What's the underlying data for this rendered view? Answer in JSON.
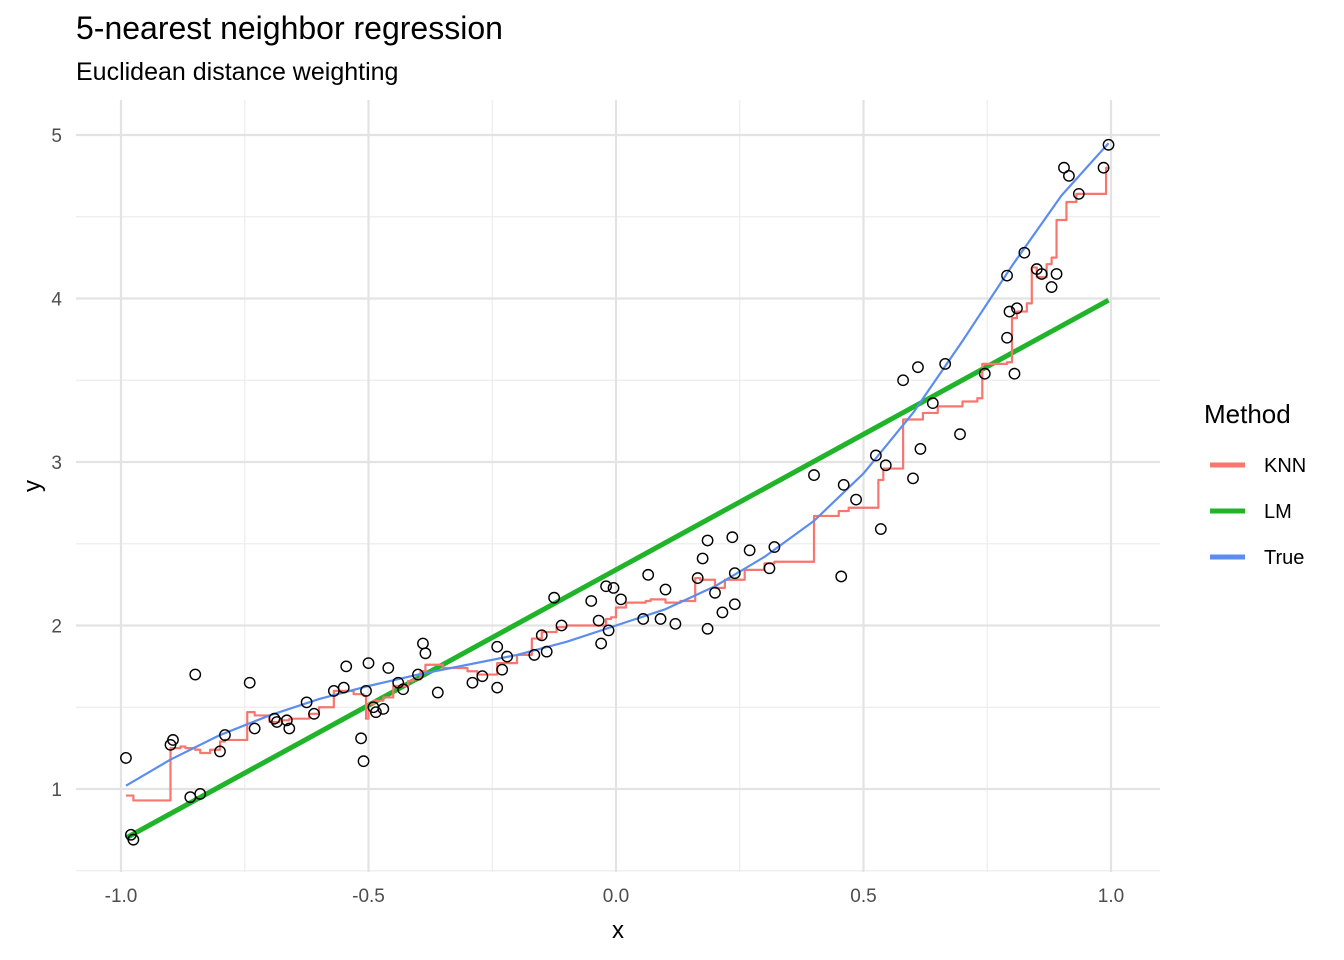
{
  "chart_data": {
    "type": "line",
    "title": "5-nearest neighbor regression",
    "subtitle": "Euclidean distance weighting",
    "xlabel": "x",
    "ylabel": "y",
    "xlim": [
      -1.0,
      1.0
    ],
    "ylim": [
      0.5,
      5.2
    ],
    "x_ticks": [
      -1.0,
      -0.5,
      0.0,
      0.5,
      1.0
    ],
    "x_tick_labels": [
      "-1.0",
      "-0.5",
      "0.0",
      "0.5",
      "1.0"
    ],
    "y_ticks": [
      1,
      2,
      3,
      4,
      5
    ],
    "y_tick_labels": [
      "1",
      "2",
      "3",
      "4",
      "5"
    ],
    "grid": true,
    "legend": {
      "title": "Method",
      "position": "right",
      "entries": [
        {
          "label": "KNN",
          "color": "#F8766D"
        },
        {
          "label": "LM",
          "color": "#1FB429"
        },
        {
          "label": "True",
          "color": "#5B8DF0"
        }
      ]
    },
    "points": [
      [
        -0.99,
        1.19
      ],
      [
        -0.98,
        0.72
      ],
      [
        -0.975,
        0.69
      ],
      [
        -0.9,
        1.27
      ],
      [
        -0.895,
        1.3
      ],
      [
        -0.86,
        0.95
      ],
      [
        -0.85,
        1.7
      ],
      [
        -0.84,
        0.97
      ],
      [
        -0.8,
        1.23
      ],
      [
        -0.79,
        1.33
      ],
      [
        -0.74,
        1.65
      ],
      [
        -0.73,
        1.37
      ],
      [
        -0.69,
        1.43
      ],
      [
        -0.685,
        1.41
      ],
      [
        -0.665,
        1.42
      ],
      [
        -0.66,
        1.37
      ],
      [
        -0.625,
        1.53
      ],
      [
        -0.61,
        1.46
      ],
      [
        -0.57,
        1.6
      ],
      [
        -0.55,
        1.62
      ],
      [
        -0.545,
        1.75
      ],
      [
        -0.515,
        1.31
      ],
      [
        -0.51,
        1.17
      ],
      [
        -0.505,
        1.6
      ],
      [
        -0.5,
        1.77
      ],
      [
        -0.49,
        1.5
      ],
      [
        -0.485,
        1.47
      ],
      [
        -0.47,
        1.49
      ],
      [
        -0.46,
        1.74
      ],
      [
        -0.44,
        1.65
      ],
      [
        -0.43,
        1.61
      ],
      [
        -0.4,
        1.7
      ],
      [
        -0.39,
        1.89
      ],
      [
        -0.385,
        1.83
      ],
      [
        -0.36,
        1.59
      ],
      [
        -0.29,
        1.65
      ],
      [
        -0.27,
        1.69
      ],
      [
        -0.24,
        1.87
      ],
      [
        -0.24,
        1.62
      ],
      [
        -0.23,
        1.73
      ],
      [
        -0.22,
        1.81
      ],
      [
        -0.165,
        1.82
      ],
      [
        -0.15,
        1.94
      ],
      [
        -0.14,
        1.84
      ],
      [
        -0.125,
        2.17
      ],
      [
        -0.11,
        2.0
      ],
      [
        -0.05,
        2.15
      ],
      [
        -0.035,
        2.03
      ],
      [
        -0.03,
        1.89
      ],
      [
        -0.02,
        2.24
      ],
      [
        -0.015,
        1.97
      ],
      [
        -0.005,
        2.23
      ],
      [
        0.01,
        2.16
      ],
      [
        0.055,
        2.04
      ],
      [
        0.065,
        2.31
      ],
      [
        0.09,
        2.04
      ],
      [
        0.1,
        2.22
      ],
      [
        0.12,
        2.01
      ],
      [
        0.165,
        2.29
      ],
      [
        0.175,
        2.41
      ],
      [
        0.185,
        1.98
      ],
      [
        0.185,
        2.52
      ],
      [
        0.2,
        2.2
      ],
      [
        0.215,
        2.08
      ],
      [
        0.235,
        2.54
      ],
      [
        0.24,
        2.32
      ],
      [
        0.24,
        2.13
      ],
      [
        0.27,
        2.46
      ],
      [
        0.31,
        2.35
      ],
      [
        0.32,
        2.48
      ],
      [
        0.4,
        2.92
      ],
      [
        0.455,
        2.3
      ],
      [
        0.46,
        2.86
      ],
      [
        0.485,
        2.77
      ],
      [
        0.525,
        3.04
      ],
      [
        0.535,
        2.59
      ],
      [
        0.545,
        2.98
      ],
      [
        0.58,
        3.5
      ],
      [
        0.6,
        2.9
      ],
      [
        0.61,
        3.58
      ],
      [
        0.615,
        3.08
      ],
      [
        0.64,
        3.36
      ],
      [
        0.665,
        3.6
      ],
      [
        0.695,
        3.17
      ],
      [
        0.745,
        3.54
      ],
      [
        0.79,
        4.14
      ],
      [
        0.79,
        3.76
      ],
      [
        0.795,
        3.92
      ],
      [
        0.805,
        3.54
      ],
      [
        0.81,
        3.94
      ],
      [
        0.825,
        4.28
      ],
      [
        0.85,
        4.18
      ],
      [
        0.86,
        4.15
      ],
      [
        0.88,
        4.07
      ],
      [
        0.89,
        4.15
      ],
      [
        0.905,
        4.8
      ],
      [
        0.915,
        4.75
      ],
      [
        0.935,
        4.64
      ],
      [
        0.985,
        4.8
      ],
      [
        0.995,
        4.94
      ]
    ],
    "series": [
      {
        "name": "KNN",
        "color": "#F8766D",
        "step": true,
        "x": [
          -0.99,
          -0.975,
          -0.9,
          -0.88,
          -0.87,
          -0.85,
          -0.84,
          -0.82,
          -0.8,
          -0.79,
          -0.77,
          -0.745,
          -0.73,
          -0.7,
          -0.68,
          -0.66,
          -0.62,
          -0.6,
          -0.57,
          -0.55,
          -0.53,
          -0.51,
          -0.505,
          -0.5,
          -0.49,
          -0.47,
          -0.45,
          -0.42,
          -0.41,
          -0.395,
          -0.385,
          -0.35,
          -0.3,
          -0.28,
          -0.26,
          -0.24,
          -0.2,
          -0.17,
          -0.15,
          -0.12,
          -0.1,
          -0.05,
          -0.02,
          -0.01,
          0.0,
          0.02,
          0.06,
          0.07,
          0.1,
          0.13,
          0.16,
          0.17,
          0.2,
          0.22,
          0.26,
          0.3,
          0.32,
          0.4,
          0.45,
          0.47,
          0.52,
          0.53,
          0.54,
          0.58,
          0.62,
          0.65,
          0.7,
          0.73,
          0.74,
          0.79,
          0.8,
          0.81,
          0.83,
          0.84,
          0.85,
          0.87,
          0.88,
          0.89,
          0.9,
          0.91,
          0.93,
          0.99
        ],
        "y": [
          0.96,
          0.93,
          1.25,
          1.26,
          1.25,
          1.24,
          1.22,
          1.24,
          1.29,
          1.3,
          1.3,
          1.47,
          1.45,
          1.41,
          1.42,
          1.43,
          1.46,
          1.5,
          1.6,
          1.6,
          1.58,
          1.57,
          1.43,
          1.52,
          1.54,
          1.56,
          1.63,
          1.66,
          1.67,
          1.72,
          1.76,
          1.74,
          1.72,
          1.7,
          1.7,
          1.77,
          1.82,
          1.92,
          1.96,
          1.99,
          2.0,
          2.0,
          2.04,
          2.05,
          2.11,
          2.14,
          2.15,
          2.16,
          2.14,
          2.15,
          2.29,
          2.28,
          2.23,
          2.28,
          2.34,
          2.38,
          2.39,
          2.67,
          2.7,
          2.72,
          2.72,
          2.89,
          2.96,
          3.26,
          3.3,
          3.34,
          3.37,
          3.39,
          3.6,
          3.61,
          3.88,
          3.92,
          3.97,
          4.19,
          4.13,
          4.21,
          4.25,
          4.48,
          4.48,
          4.59,
          4.64,
          4.8
        ]
      },
      {
        "name": "LM",
        "color": "#1FB429",
        "x": [
          -0.99,
          0.995
        ],
        "y": [
          0.7,
          3.99
        ]
      },
      {
        "name": "True",
        "color": "#5B8DF0",
        "x": [
          -0.99,
          -0.9,
          -0.8,
          -0.7,
          -0.6,
          -0.5,
          -0.4,
          -0.3,
          -0.2,
          -0.1,
          0.0,
          0.1,
          0.2,
          0.3,
          0.4,
          0.5,
          0.6,
          0.7,
          0.8,
          0.9,
          0.995
        ],
        "y": [
          1.02,
          1.18,
          1.33,
          1.45,
          1.55,
          1.63,
          1.7,
          1.76,
          1.82,
          1.9,
          2.0,
          2.1,
          2.24,
          2.42,
          2.64,
          2.93,
          3.3,
          3.74,
          4.2,
          4.63,
          4.95
        ]
      }
    ]
  }
}
